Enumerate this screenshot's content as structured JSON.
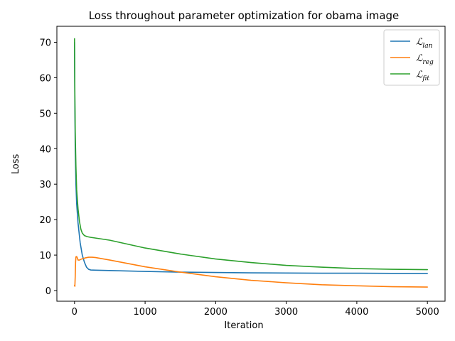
{
  "chart_data": {
    "type": "line",
    "title": "Loss throughout parameter optimization for obama image",
    "xlabel": "Iteration",
    "ylabel": "Loss",
    "xlim": [
      -250,
      5250
    ],
    "ylim": [
      -3.0,
      74.5
    ],
    "xticks": [
      0,
      1000,
      2000,
      3000,
      4000,
      5000
    ],
    "yticks": [
      0,
      10,
      20,
      30,
      40,
      50,
      60,
      70
    ],
    "grid": false,
    "legend_position": "top-right",
    "series": [
      {
        "name": "lan",
        "legend_main": "ℒ",
        "legend_sub": "lan",
        "color": "#1f77b4",
        "points": [
          [
            0,
            70.0
          ],
          [
            5,
            52.0
          ],
          [
            10,
            40.0
          ],
          [
            20,
            30.0
          ],
          [
            30,
            24.5
          ],
          [
            50,
            19.0
          ],
          [
            80,
            13.5
          ],
          [
            110,
            10.0
          ],
          [
            140,
            8.0
          ],
          [
            170,
            6.6
          ],
          [
            200,
            6.0
          ],
          [
            230,
            5.8
          ],
          [
            300,
            5.75
          ],
          [
            500,
            5.65
          ],
          [
            1000,
            5.4
          ],
          [
            1500,
            5.2
          ],
          [
            2000,
            5.1
          ],
          [
            2500,
            5.0
          ],
          [
            3000,
            4.95
          ],
          [
            3500,
            4.9
          ],
          [
            4000,
            4.9
          ],
          [
            4500,
            4.85
          ],
          [
            5000,
            4.85
          ]
        ]
      },
      {
        "name": "reg",
        "legend_main": "ℒ",
        "legend_sub": "reg",
        "color": "#ff7f0e",
        "points": [
          [
            0,
            1.5
          ],
          [
            5,
            1.2
          ],
          [
            10,
            4.0
          ],
          [
            15,
            8.0
          ],
          [
            20,
            9.5
          ],
          [
            30,
            9.6
          ],
          [
            40,
            9.2
          ],
          [
            50,
            8.6
          ],
          [
            70,
            8.6
          ],
          [
            100,
            8.9
          ],
          [
            150,
            9.2
          ],
          [
            200,
            9.4
          ],
          [
            250,
            9.4
          ],
          [
            300,
            9.3
          ],
          [
            500,
            8.6
          ],
          [
            1000,
            6.7
          ],
          [
            1500,
            5.2
          ],
          [
            2000,
            3.9
          ],
          [
            2500,
            2.9
          ],
          [
            3000,
            2.2
          ],
          [
            3500,
            1.65
          ],
          [
            4000,
            1.35
          ],
          [
            4500,
            1.1
          ],
          [
            5000,
            1.0
          ]
        ]
      },
      {
        "name": "fit",
        "legend_main": "ℒ",
        "legend_sub": "fit",
        "color": "#2ca02c",
        "points": [
          [
            0,
            71.0
          ],
          [
            5,
            55.0
          ],
          [
            10,
            45.0
          ],
          [
            20,
            35.0
          ],
          [
            30,
            28.5
          ],
          [
            50,
            23.0
          ],
          [
            70,
            19.5
          ],
          [
            90,
            17.3
          ],
          [
            110,
            16.2
          ],
          [
            140,
            15.5
          ],
          [
            180,
            15.2
          ],
          [
            230,
            15.0
          ],
          [
            300,
            14.8
          ],
          [
            500,
            14.2
          ],
          [
            1000,
            12.0
          ],
          [
            1500,
            10.3
          ],
          [
            2000,
            8.9
          ],
          [
            2500,
            7.9
          ],
          [
            3000,
            7.1
          ],
          [
            3500,
            6.6
          ],
          [
            4000,
            6.2
          ],
          [
            4500,
            6.0
          ],
          [
            5000,
            5.9
          ]
        ]
      }
    ]
  }
}
